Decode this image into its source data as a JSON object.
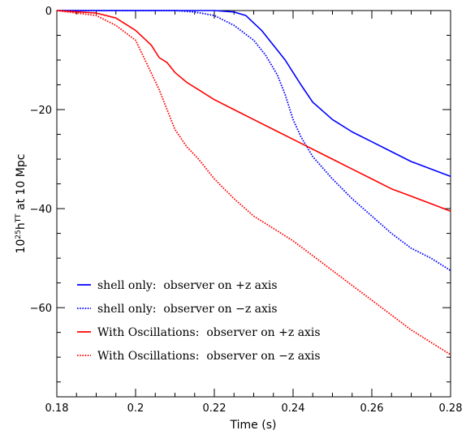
{
  "chart_data": {
    "type": "line",
    "title": "",
    "xlabel": "Time (s)",
    "ylabel_prefix": "10",
    "ylabel_sup1": "25",
    "ylabel_mid": "h",
    "ylabel_sup2": "TT",
    "ylabel_suffix": " at 10 Mpc",
    "xlim": [
      0.18,
      0.28
    ],
    "ylim": [
      -78,
      0
    ],
    "xticks": [
      0.18,
      0.2,
      0.22,
      0.24,
      0.26,
      0.28
    ],
    "xtick_labels": [
      "0.18",
      "0.2",
      "0.22",
      "0.24",
      "0.26",
      "0.28"
    ],
    "yticks": [
      0,
      -20,
      -40,
      -60
    ],
    "ytick_labels": [
      "0",
      "−20",
      "−40",
      "−60"
    ],
    "grid": false,
    "legend_position": "bottom-left",
    "series": [
      {
        "name": "shell only:  observer on +z axis",
        "color": "#0000ff",
        "dash": "solid",
        "x": [
          0.18,
          0.19,
          0.2,
          0.21,
          0.22,
          0.225,
          0.228,
          0.23,
          0.232,
          0.234,
          0.236,
          0.238,
          0.24,
          0.242,
          0.245,
          0.25,
          0.255,
          0.26,
          0.265,
          0.27,
          0.275,
          0.28
        ],
        "y": [
          0,
          0,
          0,
          0,
          0,
          -0.3,
          -1,
          -2.5,
          -4,
          -6,
          -8,
          -10,
          -12.5,
          -15,
          -18.5,
          -22,
          -24.5,
          -26.5,
          -28.5,
          -30.5,
          -32,
          -33.5
        ]
      },
      {
        "name": "shell only:  observer on −z axis",
        "color": "#0000ff",
        "dash": "dotted",
        "x": [
          0.18,
          0.19,
          0.2,
          0.21,
          0.215,
          0.22,
          0.225,
          0.23,
          0.233,
          0.236,
          0.238,
          0.24,
          0.242,
          0.245,
          0.25,
          0.255,
          0.26,
          0.265,
          0.27,
          0.275,
          0.28
        ],
        "y": [
          0,
          0,
          0,
          0,
          -0.3,
          -1,
          -3,
          -6,
          -9,
          -13,
          -17,
          -22,
          -25.5,
          -29.5,
          -34,
          -38,
          -41.5,
          -45,
          -48,
          -50,
          -52.5
        ]
      },
      {
        "name": "With Oscillations:  observer on +z axis",
        "color": "#ff0000",
        "dash": "solid",
        "x": [
          0.18,
          0.19,
          0.195,
          0.2,
          0.204,
          0.206,
          0.208,
          0.21,
          0.213,
          0.216,
          0.22,
          0.225,
          0.23,
          0.235,
          0.24,
          0.245,
          0.25,
          0.255,
          0.26,
          0.265,
          0.27,
          0.275,
          0.28
        ],
        "y": [
          0,
          -0.5,
          -1.5,
          -4,
          -7,
          -9.5,
          -10.5,
          -12.5,
          -14.5,
          -16,
          -18,
          -20,
          -22,
          -24,
          -26,
          -28,
          -30,
          -32,
          -34,
          -36,
          -37.5,
          -39,
          -40.5
        ]
      },
      {
        "name": "With Oscillations:  observer on −z axis",
        "color": "#ff0000",
        "dash": "dotted",
        "x": [
          0.18,
          0.19,
          0.195,
          0.2,
          0.203,
          0.206,
          0.208,
          0.21,
          0.213,
          0.216,
          0.22,
          0.225,
          0.23,
          0.235,
          0.24,
          0.245,
          0.25,
          0.255,
          0.26,
          0.265,
          0.27,
          0.275,
          0.28
        ],
        "y": [
          0,
          -1,
          -3,
          -6,
          -11,
          -16,
          -20,
          -24,
          -27.5,
          -30,
          -34,
          -38,
          -41.5,
          -44,
          -46.5,
          -49.5,
          -52.5,
          -55.5,
          -58.5,
          -61.5,
          -64.5,
          -67,
          -69.5
        ]
      }
    ]
  }
}
